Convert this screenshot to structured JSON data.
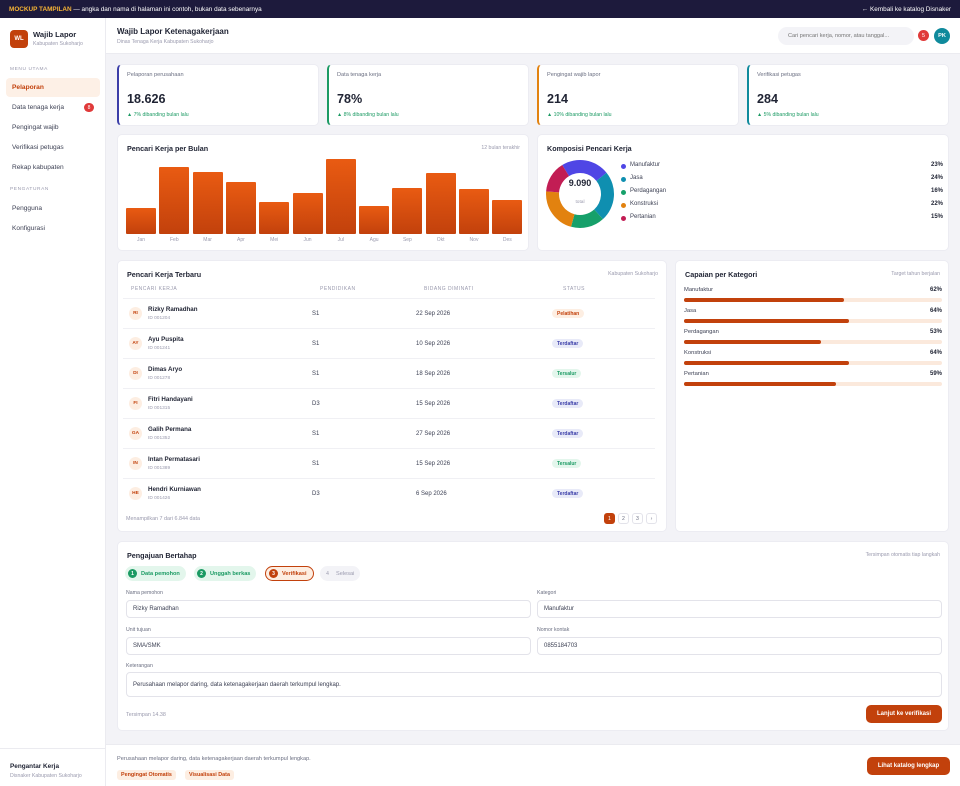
{
  "banner": {
    "tag": "MOCKUP TAMPILAN",
    "message": "— angka dan nama di halaman ini contoh, bukan data sebenarnya",
    "back_link": "← Kembali ke katalog Disnaker"
  },
  "sidebar": {
    "logo": "WL",
    "app_name": "Wajib Lapor",
    "app_sub": "Kabupaten Sukoharjo",
    "section_main": "MENU UTAMA",
    "items": [
      {
        "label": "Pelaporan",
        "active": true
      },
      {
        "label": "Data tenaga kerja",
        "badge": "8"
      },
      {
        "label": "Pengingat wajib"
      },
      {
        "label": "Verifikasi petugas"
      },
      {
        "label": "Rekap kabupaten"
      }
    ],
    "section_settings": "PENGATURAN",
    "settings_items": [
      {
        "label": "Pengguna"
      },
      {
        "label": "Konfigurasi"
      }
    ],
    "footer_title": "Pengantar Kerja",
    "footer_sub": "Disnaker Kabupaten Sukoharjo"
  },
  "header": {
    "title": "Wajib Lapor Ketenagakerjaan",
    "breadcrumb": "Dinas Tenaga Kerja Kabupaten Sukoharjo",
    "search_placeholder": "Cari pencari kerja, nomor, atau tanggal...",
    "notif_count": "5",
    "avatar": "PK"
  },
  "kpis": [
    {
      "label": "Pelaporan perusahaan",
      "value": "18.626",
      "change": "▲ 7% dibanding bulan lalu",
      "accent": "#3b3ea8"
    },
    {
      "label": "Data tenaga kerja",
      "value": "78%",
      "change": "▲ 8% dibanding bulan lalu",
      "accent": "#1b9a63"
    },
    {
      "label": "Pengingat wajib lapor",
      "value": "214",
      "change": "▲ 10% dibanding bulan lalu",
      "accent": "#e2820f"
    },
    {
      "label": "Verifikasi petugas",
      "value": "284",
      "change": "▲ 5% dibanding bulan lalu",
      "accent": "#0f8a9c"
    }
  ],
  "monthly": {
    "title": "Pencari Kerja per Bulan",
    "meta": "12 bulan terakhir"
  },
  "composition": {
    "title": "Komposisi Pencari Kerja",
    "total": "9.090",
    "total_label": "total"
  },
  "chart_data": [
    {
      "type": "bar",
      "title": "Pencari Kerja per Bulan",
      "categories": [
        "Jan",
        "Feb",
        "Mar",
        "Apr",
        "Mei",
        "Jun",
        "Jul",
        "Agu",
        "Sep",
        "Okt",
        "Nov",
        "Des"
      ],
      "values": [
        35,
        90,
        83,
        70,
        43,
        55,
        100,
        37,
        62,
        82,
        60,
        46
      ]
    },
    {
      "type": "pie",
      "title": "Komposisi Pencari Kerja",
      "labels": [
        "Manufaktur",
        "Jasa",
        "Perdagangan",
        "Konstruksi",
        "Pertanian"
      ],
      "values": [
        23,
        24,
        16,
        22,
        15
      ],
      "colors": [
        "#4f46e5",
        "#0f8fb0",
        "#16a06a",
        "#e2820f",
        "#c21d54"
      ]
    }
  ],
  "table": {
    "title": "Pencari Kerja Terbaru",
    "meta": "Kabupaten Sukoharjo",
    "headers": [
      "PENCARI KERJA",
      "PENDIDIKAN",
      "BIDANG DIMINATI",
      "STATUS"
    ],
    "rows": [
      {
        "initials": "RI",
        "name": "Rizky Ramadhan",
        "id": "ID 001204",
        "edu": "S1",
        "date": "22 Sep 2026",
        "status": "Pelatihan",
        "kind": "orange"
      },
      {
        "initials": "AY",
        "name": "Ayu Puspita",
        "id": "ID 001241",
        "edu": "S1",
        "date": "10 Sep 2026",
        "status": "Terdaftar",
        "kind": "blue"
      },
      {
        "initials": "DI",
        "name": "Dimas Aryo",
        "id": "ID 001278",
        "edu": "S1",
        "date": "18 Sep 2026",
        "status": "Tersalur",
        "kind": "green"
      },
      {
        "initials": "FI",
        "name": "Fitri Handayani",
        "id": "ID 001315",
        "edu": "D3",
        "date": "15 Sep 2026",
        "status": "Terdaftar",
        "kind": "blue"
      },
      {
        "initials": "GA",
        "name": "Galih Permana",
        "id": "ID 001352",
        "edu": "S1",
        "date": "27 Sep 2026",
        "status": "Terdaftar",
        "kind": "blue"
      },
      {
        "initials": "IN",
        "name": "Intan Permatasari",
        "id": "ID 001389",
        "edu": "S1",
        "date": "15 Sep 2026",
        "status": "Tersalur",
        "kind": "green"
      },
      {
        "initials": "HE",
        "name": "Hendri Kurniawan",
        "id": "ID 001426",
        "edu": "D3",
        "date": "6 Sep 2026",
        "status": "Terdaftar",
        "kind": "blue"
      }
    ],
    "footer": "Menampilkan 7 dari 6.844 data",
    "pages": [
      "1",
      "2",
      "3",
      "›"
    ]
  },
  "categories": {
    "title": "Capaian per Kategori",
    "meta": "Target tahun berjalan",
    "items": [
      {
        "label": "Manufaktur",
        "pct": "62%",
        "value": 62
      },
      {
        "label": "Jasa",
        "pct": "64%",
        "value": 64
      },
      {
        "label": "Perdagangan",
        "pct": "53%",
        "value": 53
      },
      {
        "label": "Konstruksi",
        "pct": "64%",
        "value": 64
      },
      {
        "label": "Pertanian",
        "pct": "59%",
        "value": 59
      }
    ]
  },
  "form": {
    "title": "Pengajuan Bertahap",
    "meta": "Tersimpan otomatis tiap langkah",
    "steps": [
      {
        "n": "1",
        "label": "Data pemohon",
        "state": "done"
      },
      {
        "n": "2",
        "label": "Unggah berkas",
        "state": "done"
      },
      {
        "n": "3",
        "label": "Verifikasi",
        "state": "current"
      },
      {
        "n": "4",
        "label": "Selesai",
        "state": "todo"
      }
    ],
    "fields": {
      "name_label": "Nama pemohon",
      "name_value": "Rizky Ramadhan",
      "category_label": "Kategori",
      "category_value": "Manufaktur",
      "unit_label": "Unit tujuan",
      "unit_value": "SMA/SMK",
      "phone_label": "Nomor kontak",
      "phone_value": "0855184703",
      "notes_label": "Keterangan",
      "notes_value": "Perusahaan melapor daring, data ketenagakerjaan daerah terkumpul lengkap."
    },
    "saved": "Tersimpan 14.38",
    "submit": "Lanjut ke verifikasi"
  },
  "footer": {
    "text": "Perusahaan melapor daring, data ketenagakerjaan daerah terkumpul lengkap.",
    "chips": [
      "Pengingat Otomatis",
      "Visualisasi Data"
    ],
    "cta": "Lihat katalog lengkap"
  }
}
